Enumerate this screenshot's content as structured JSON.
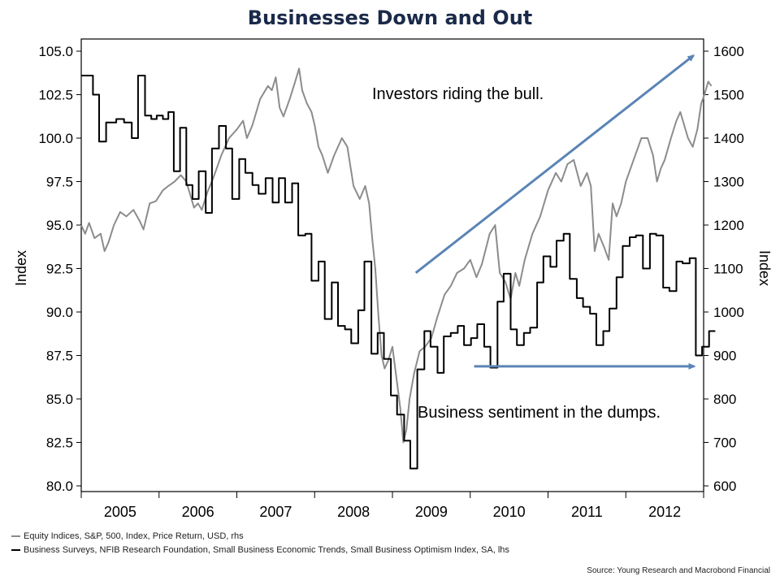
{
  "colors": {
    "title": "#1b2a4a",
    "sp500_line": "#8c8c8c",
    "nfib_line": "#000000",
    "arrow": "#5b84b6"
  },
  "footer": {
    "legend": [
      {
        "label": "Equity Indices, S&P, 500, Index, Price Return, USD, rhs",
        "color": "#8c8c8c"
      },
      {
        "label": "Business Surveys, NFIB Research Foundation, Small Business Economic Trends, Small Business Optimism Index, SA, lhs",
        "color": "#000000"
      }
    ],
    "source": "Source: Young Research and Macrobond Financial"
  },
  "chart_data": {
    "type": "line",
    "title": "Businesses Down and Out",
    "y_left": {
      "label": "Index",
      "lim": [
        80.0,
        105.0
      ],
      "ticks": [
        "105.0",
        "102.5",
        "100.0",
        "97.5",
        "95.0",
        "92.5",
        "90.0",
        "87.5",
        "85.0",
        "82.5",
        "80.0"
      ]
    },
    "y_right": {
      "label": "Index",
      "lim": [
        600,
        1600
      ],
      "ticks": [
        "1600",
        "1500",
        "1400",
        "1300",
        "1200",
        "1100",
        "1000",
        "900",
        "800",
        "700",
        "600"
      ]
    },
    "x": {
      "lim": [
        2005.0,
        2013.0
      ],
      "tick_labels": [
        "2005",
        "2006",
        "2007",
        "2008",
        "2009",
        "2010",
        "2011",
        "2012"
      ]
    },
    "grid": false,
    "legend_position": "bottom-left",
    "annotations": [
      {
        "text": "Investors riding the bull.",
        "arrow_from": [
          2009.3,
          1090
        ],
        "arrow_to": [
          2016.0,
          1590
        ]
      },
      {
        "text": "Business sentiment in the dumps.",
        "arrow_from": [
          2010.05,
          875
        ],
        "arrow_to": [
          2016.1,
          875
        ]
      }
    ],
    "series": [
      {
        "name": "Equity Indices, S&P, 500, Index, Price Return, USD, rhs",
        "axis": "right",
        "step": false,
        "points": [
          [
            2005.0,
            1200
          ],
          [
            2005.05,
            1180
          ],
          [
            2005.1,
            1205
          ],
          [
            2005.17,
            1170
          ],
          [
            2005.25,
            1180
          ],
          [
            2005.3,
            1140
          ],
          [
            2005.35,
            1160
          ],
          [
            2005.42,
            1200
          ],
          [
            2005.5,
            1230
          ],
          [
            2005.58,
            1220
          ],
          [
            2005.67,
            1235
          ],
          [
            2005.75,
            1210
          ],
          [
            2005.8,
            1190
          ],
          [
            2005.88,
            1250
          ],
          [
            2005.96,
            1255
          ],
          [
            2006.05,
            1280
          ],
          [
            2006.12,
            1290
          ],
          [
            2006.2,
            1300
          ],
          [
            2006.28,
            1315
          ],
          [
            2006.35,
            1300
          ],
          [
            2006.4,
            1270
          ],
          [
            2006.45,
            1240
          ],
          [
            2006.5,
            1250
          ],
          [
            2006.55,
            1235
          ],
          [
            2006.62,
            1275
          ],
          [
            2006.7,
            1310
          ],
          [
            2006.8,
            1360
          ],
          [
            2006.9,
            1400
          ],
          [
            2007.0,
            1420
          ],
          [
            2007.08,
            1440
          ],
          [
            2007.13,
            1400
          ],
          [
            2007.2,
            1430
          ],
          [
            2007.3,
            1490
          ],
          [
            2007.4,
            1520
          ],
          [
            2007.45,
            1510
          ],
          [
            2007.5,
            1540
          ],
          [
            2007.55,
            1470
          ],
          [
            2007.6,
            1450
          ],
          [
            2007.68,
            1490
          ],
          [
            2007.75,
            1530
          ],
          [
            2007.8,
            1560
          ],
          [
            2007.84,
            1510
          ],
          [
            2007.9,
            1480
          ],
          [
            2007.96,
            1460
          ],
          [
            2008.0,
            1430
          ],
          [
            2008.05,
            1380
          ],
          [
            2008.1,
            1360
          ],
          [
            2008.17,
            1320
          ],
          [
            2008.25,
            1360
          ],
          [
            2008.35,
            1400
          ],
          [
            2008.42,
            1380
          ],
          [
            2008.5,
            1290
          ],
          [
            2008.58,
            1260
          ],
          [
            2008.65,
            1290
          ],
          [
            2008.7,
            1250
          ],
          [
            2008.74,
            1170
          ],
          [
            2008.78,
            1100
          ],
          [
            2008.82,
            990
          ],
          [
            2008.86,
            900
          ],
          [
            2008.9,
            870
          ],
          [
            2008.95,
            890
          ],
          [
            2009.0,
            920
          ],
          [
            2009.05,
            850
          ],
          [
            2009.1,
            780
          ],
          [
            2009.14,
            700
          ],
          [
            2009.18,
            730
          ],
          [
            2009.22,
            800
          ],
          [
            2009.28,
            860
          ],
          [
            2009.35,
            910
          ],
          [
            2009.42,
            920
          ],
          [
            2009.5,
            940
          ],
          [
            2009.58,
            990
          ],
          [
            2009.67,
            1040
          ],
          [
            2009.75,
            1060
          ],
          [
            2009.83,
            1090
          ],
          [
            2009.92,
            1100
          ],
          [
            2010.0,
            1120
          ],
          [
            2010.08,
            1080
          ],
          [
            2010.15,
            1110
          ],
          [
            2010.25,
            1180
          ],
          [
            2010.32,
            1200
          ],
          [
            2010.38,
            1090
          ],
          [
            2010.45,
            1070
          ],
          [
            2010.52,
            1030
          ],
          [
            2010.58,
            1090
          ],
          [
            2010.63,
            1060
          ],
          [
            2010.7,
            1120
          ],
          [
            2010.8,
            1180
          ],
          [
            2010.9,
            1220
          ],
          [
            2011.0,
            1280
          ],
          [
            2011.1,
            1320
          ],
          [
            2011.17,
            1300
          ],
          [
            2011.25,
            1340
          ],
          [
            2011.33,
            1350
          ],
          [
            2011.42,
            1290
          ],
          [
            2011.5,
            1320
          ],
          [
            2011.55,
            1290
          ],
          [
            2011.6,
            1140
          ],
          [
            2011.65,
            1180
          ],
          [
            2011.72,
            1150
          ],
          [
            2011.78,
            1120
          ],
          [
            2011.83,
            1250
          ],
          [
            2011.88,
            1220
          ],
          [
            2011.94,
            1250
          ],
          [
            2012.0,
            1300
          ],
          [
            2012.1,
            1350
          ],
          [
            2012.2,
            1400
          ],
          [
            2012.28,
            1400
          ],
          [
            2012.35,
            1360
          ],
          [
            2012.4,
            1300
          ],
          [
            2012.45,
            1330
          ],
          [
            2012.5,
            1350
          ],
          [
            2012.58,
            1400
          ],
          [
            2012.65,
            1440
          ],
          [
            2012.7,
            1460
          ],
          [
            2012.75,
            1430
          ],
          [
            2012.8,
            1400
          ],
          [
            2012.86,
            1380
          ],
          [
            2012.92,
            1420
          ],
          [
            2012.97,
            1480
          ],
          [
            2013.01,
            1500
          ],
          [
            2013.06,
            1530
          ],
          [
            2013.1,
            1520
          ]
        ]
      },
      {
        "name": "Business Surveys, NFIB Research Foundation, Small Business Economic Trends, Small Business Optimism Index, SA, lhs",
        "axis": "left",
        "step": true,
        "points": [
          [
            2005.0,
            103.6
          ],
          [
            2005.15,
            102.5
          ],
          [
            2005.23,
            99.8
          ],
          [
            2005.32,
            100.9
          ],
          [
            2005.45,
            101.1
          ],
          [
            2005.55,
            100.9
          ],
          [
            2005.65,
            100.0
          ],
          [
            2005.73,
            103.6
          ],
          [
            2005.82,
            101.3
          ],
          [
            2005.9,
            101.1
          ],
          [
            2005.97,
            101.3
          ],
          [
            2006.05,
            101.1
          ],
          [
            2006.12,
            101.5
          ],
          [
            2006.19,
            98.1
          ],
          [
            2006.27,
            100.6
          ],
          [
            2006.35,
            97.3
          ],
          [
            2006.43,
            96.5
          ],
          [
            2006.51,
            98.1
          ],
          [
            2006.6,
            95.7
          ],
          [
            2006.68,
            99.4
          ],
          [
            2006.77,
            100.7
          ],
          [
            2006.86,
            99.4
          ],
          [
            2006.94,
            96.5
          ],
          [
            2007.03,
            98.8
          ],
          [
            2007.11,
            98.0
          ],
          [
            2007.2,
            97.3
          ],
          [
            2007.28,
            96.8
          ],
          [
            2007.37,
            97.7
          ],
          [
            2007.46,
            96.3
          ],
          [
            2007.54,
            97.7
          ],
          [
            2007.62,
            96.3
          ],
          [
            2007.71,
            97.4
          ],
          [
            2007.79,
            94.4
          ],
          [
            2007.88,
            94.5
          ],
          [
            2007.96,
            91.8
          ],
          [
            2008.05,
            92.9
          ],
          [
            2008.13,
            89.6
          ],
          [
            2008.22,
            91.7
          ],
          [
            2008.3,
            89.2
          ],
          [
            2008.39,
            89.0
          ],
          [
            2008.47,
            88.2
          ],
          [
            2008.56,
            90.1
          ],
          [
            2008.64,
            92.9
          ],
          [
            2008.73,
            87.6
          ],
          [
            2008.81,
            88.8
          ],
          [
            2008.89,
            87.3
          ],
          [
            2008.98,
            85.2
          ],
          [
            2009.06,
            84.1
          ],
          [
            2009.15,
            82.6
          ],
          [
            2009.23,
            81.0
          ],
          [
            2009.32,
            86.7
          ],
          [
            2009.41,
            88.9
          ],
          [
            2009.49,
            88.0
          ],
          [
            2009.58,
            86.5
          ],
          [
            2009.66,
            88.6
          ],
          [
            2009.75,
            88.8
          ],
          [
            2009.84,
            89.2
          ],
          [
            2009.92,
            88.1
          ],
          [
            2010.01,
            88.5
          ],
          [
            2010.09,
            89.3
          ],
          [
            2010.18,
            88.0
          ],
          [
            2010.26,
            86.8
          ],
          [
            2010.35,
            90.6
          ],
          [
            2010.43,
            92.2
          ],
          [
            2010.52,
            89.0
          ],
          [
            2010.6,
            88.1
          ],
          [
            2010.69,
            88.8
          ],
          [
            2010.77,
            89.1
          ],
          [
            2010.86,
            91.7
          ],
          [
            2010.94,
            93.2
          ],
          [
            2011.03,
            92.6
          ],
          [
            2011.11,
            94.1
          ],
          [
            2011.2,
            94.5
          ],
          [
            2011.28,
            91.9
          ],
          [
            2011.37,
            90.8
          ],
          [
            2011.45,
            90.3
          ],
          [
            2011.54,
            89.9
          ],
          [
            2011.62,
            88.1
          ],
          [
            2011.71,
            88.9
          ],
          [
            2011.79,
            90.2
          ],
          [
            2011.88,
            92.0
          ],
          [
            2011.96,
            93.8
          ],
          [
            2012.05,
            94.3
          ],
          [
            2012.13,
            94.4
          ],
          [
            2012.22,
            92.5
          ],
          [
            2012.31,
            94.5
          ],
          [
            2012.39,
            94.4
          ],
          [
            2012.48,
            91.4
          ],
          [
            2012.56,
            91.2
          ],
          [
            2012.65,
            92.9
          ],
          [
            2012.73,
            92.8
          ],
          [
            2012.82,
            93.1
          ],
          [
            2012.9,
            87.5
          ],
          [
            2012.98,
            88.0
          ],
          [
            2013.07,
            88.9
          ],
          [
            2013.15,
            88.9
          ]
        ]
      }
    ]
  }
}
